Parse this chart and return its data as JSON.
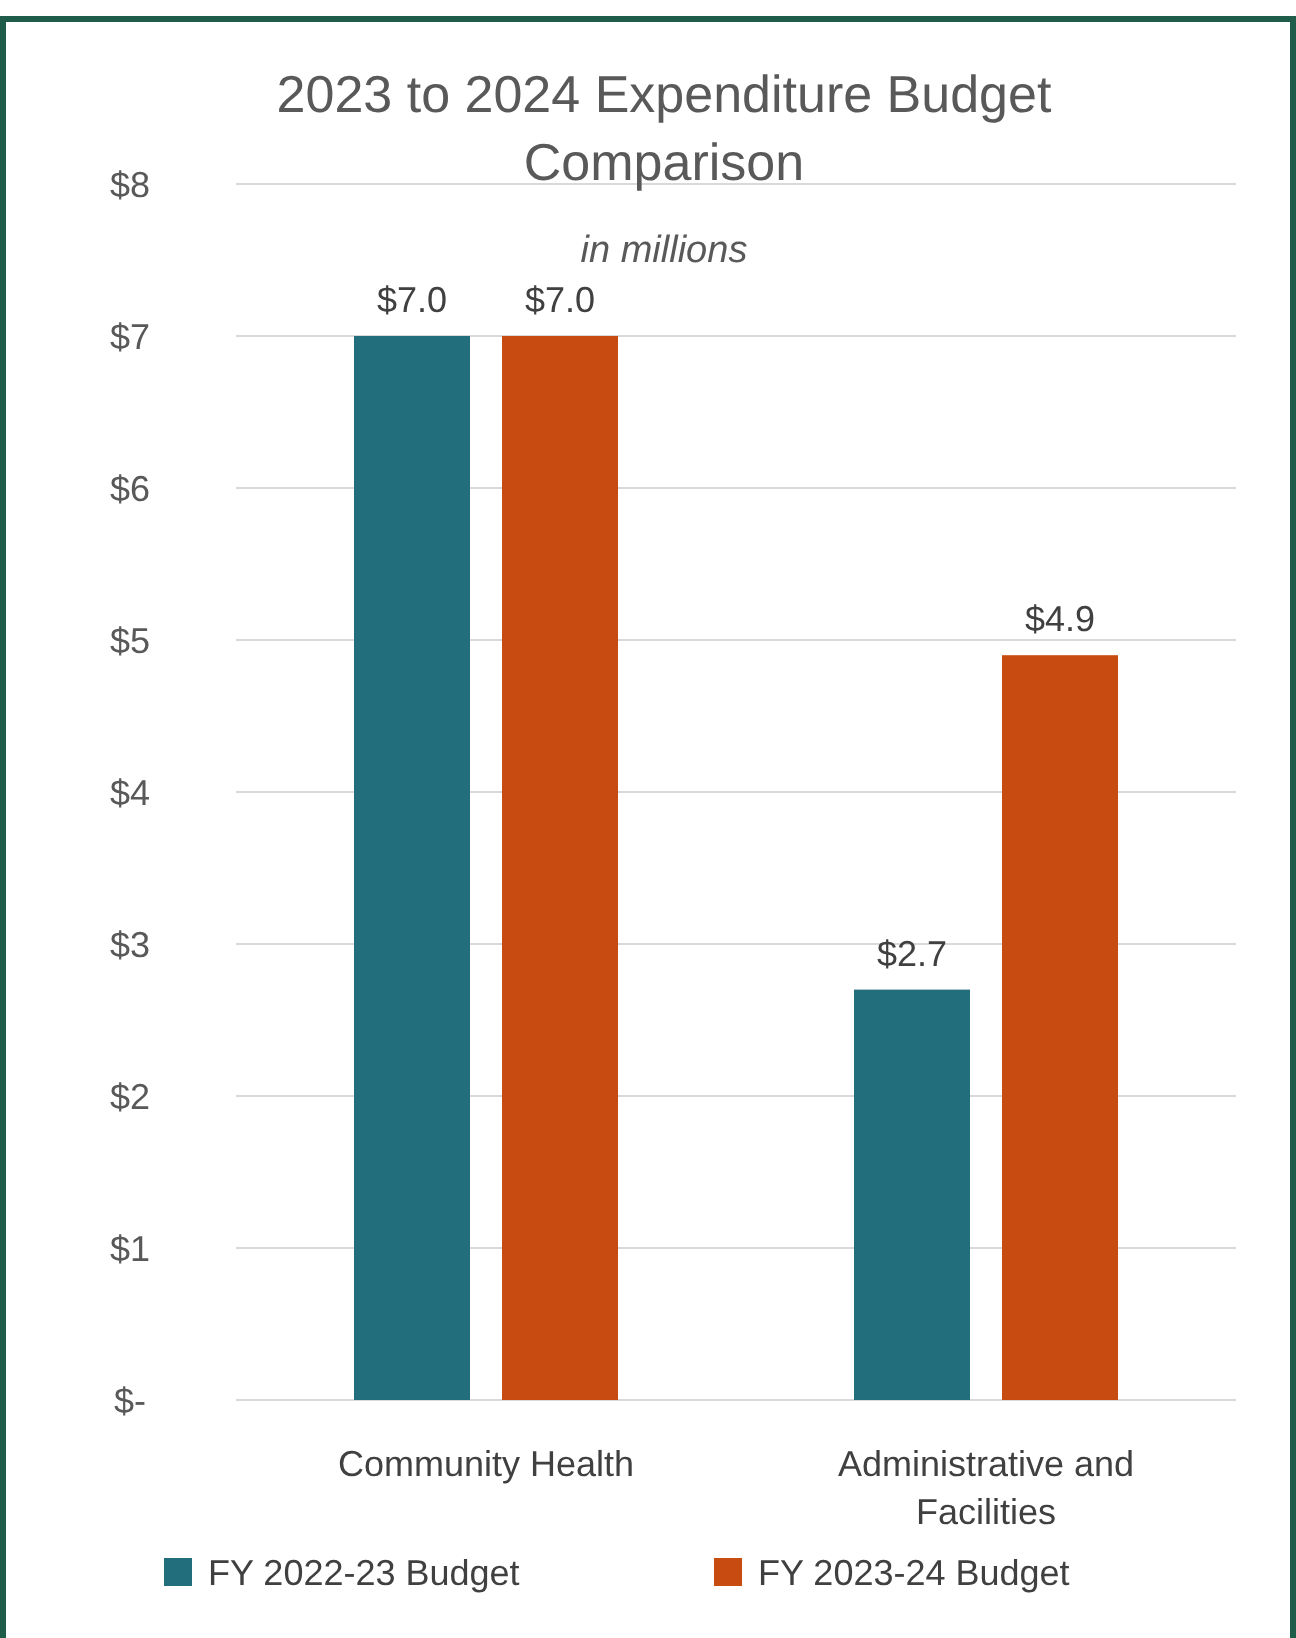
{
  "chart_data": {
    "type": "bar",
    "title": "2023 to 2024 Expenditure Budget Comparison",
    "subtitle": "in millions",
    "categories": [
      "Community Health",
      "Administrative and Facilities"
    ],
    "series": [
      {
        "name": "FY 2022-23 Budget",
        "color": "#236e7c",
        "values": [
          7.0,
          2.7
        ],
        "value_labels": [
          "$7.0",
          "$2.7"
        ]
      },
      {
        "name": "FY 2023-24 Budget",
        "color": "#c84b11",
        "values": [
          7.0,
          4.9
        ],
        "value_labels": [
          "$7.0",
          "$4.9"
        ]
      }
    ],
    "ylim": [
      0,
      8
    ],
    "yticks": [
      {
        "value": 0,
        "label": "$-"
      },
      {
        "value": 1,
        "label": "$1"
      },
      {
        "value": 2,
        "label": "$2"
      },
      {
        "value": 3,
        "label": "$3"
      },
      {
        "value": 4,
        "label": "$4"
      },
      {
        "value": 5,
        "label": "$5"
      },
      {
        "value": 6,
        "label": "$6"
      },
      {
        "value": 7,
        "label": "$7"
      },
      {
        "value": 8,
        "label": "$8"
      }
    ],
    "grid": "y",
    "legend": "bottom"
  }
}
